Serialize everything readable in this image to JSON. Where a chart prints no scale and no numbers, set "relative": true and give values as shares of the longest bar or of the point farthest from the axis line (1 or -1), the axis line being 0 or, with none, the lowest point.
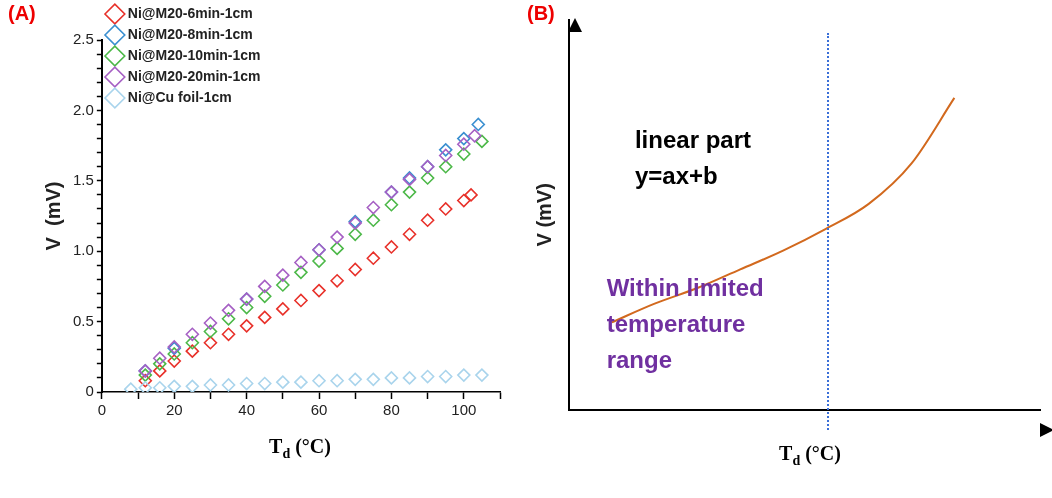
{
  "chart_data": [
    {
      "type": "scatter",
      "title": "(A)",
      "xlabel": "T$_{d}$ (°C)",
      "ylabel": "V  (mV)",
      "marker": "diamond",
      "legend": "top left",
      "grid": false,
      "xlim": [
        0,
        110
      ],
      "xticks": [
        0,
        {
          "value": 10,
          "label": null
        },
        20,
        {
          "value": 30,
          "label": null
        },
        40,
        {
          "value": 50,
          "label": null
        },
        60,
        {
          "value": 70,
          "label": null
        },
        80,
        {
          "value": 90,
          "label": null
        },
        100,
        {
          "value": 110,
          "label": null
        }
      ],
      "ylim": [
        0,
        2.5
      ],
      "yticks": [
        0,
        {
          "value": 0.1,
          "label": null
        },
        {
          "value": 0.2,
          "label": null
        },
        {
          "value": 0.3,
          "label": null
        },
        {
          "value": 0.4,
          "label": null
        },
        0.5,
        {
          "value": 0.6,
          "label": null
        },
        {
          "value": 0.7,
          "label": null
        },
        {
          "value": 0.8,
          "label": null
        },
        {
          "value": 0.9,
          "label": null
        },
        {
          "value": 1,
          "label": "1.0"
        },
        {
          "value": 1.1,
          "label": null
        },
        {
          "value": 1.2,
          "label": null
        },
        {
          "value": 1.3,
          "label": null
        },
        {
          "value": 1.4,
          "label": null
        },
        1.5,
        {
          "value": 1.6,
          "label": null
        },
        {
          "value": 1.7,
          "label": null
        },
        {
          "value": 1.8,
          "label": null
        },
        {
          "value": 1.9,
          "label": null
        },
        {
          "value": 2,
          "label": "2.0"
        },
        {
          "value": 2.1,
          "label": null
        },
        {
          "value": 2.2,
          "label": null
        },
        {
          "value": 2.3,
          "label": null
        },
        {
          "value": 2.4,
          "label": null
        },
        2.5
      ],
      "series": [
        {
          "name": "Ni@M20-6min-1cm",
          "color": "#e8312a",
          "x": [
            12,
            16,
            20,
            25,
            30,
            35,
            40,
            45,
            50,
            55,
            60,
            65,
            70,
            75,
            80,
            85,
            90,
            95,
            100,
            102
          ],
          "values": [
            0.08,
            0.15,
            0.22,
            0.29,
            0.35,
            0.41,
            0.47,
            0.53,
            0.59,
            0.65,
            0.72,
            0.79,
            0.87,
            0.95,
            1.03,
            1.12,
            1.22,
            1.3,
            1.36,
            1.4
          ]
        },
        {
          "name": "Ni@M20-8min-1cm",
          "color": "#3a8fd0",
          "x": [
            12,
            20,
            30,
            40,
            50,
            60,
            70,
            80,
            85,
            90,
            95,
            100,
            104
          ],
          "values": [
            0.15,
            0.31,
            null,
            0.66,
            null,
            1.01,
            1.21,
            1.42,
            1.52,
            1.6,
            1.72,
            1.8,
            1.9
          ]
        },
        {
          "name": "Ni@M20-10min-1cm",
          "color": "#4cb848",
          "x": [
            12,
            16,
            20,
            25,
            30,
            35,
            40,
            45,
            50,
            55,
            60,
            65,
            70,
            75,
            80,
            85,
            90,
            95,
            100,
            105
          ],
          "values": [
            0.12,
            0.2,
            0.27,
            0.35,
            0.43,
            0.52,
            0.6,
            0.68,
            0.76,
            0.85,
            0.93,
            1.02,
            1.12,
            1.22,
            1.33,
            1.42,
            1.52,
            1.6,
            1.69,
            1.78
          ]
        },
        {
          "name": "Ni@M20-20min-1cm",
          "color": "#a660c4",
          "x": [
            12,
            16,
            20,
            25,
            30,
            35,
            40,
            45,
            50,
            55,
            60,
            65,
            70,
            75,
            80,
            85,
            90,
            95,
            100,
            103
          ],
          "values": [
            0.15,
            0.24,
            0.32,
            0.41,
            0.49,
            0.58,
            0.66,
            0.75,
            0.83,
            0.92,
            1.01,
            1.1,
            1.2,
            1.31,
            1.42,
            1.51,
            1.6,
            1.68,
            1.76,
            1.82
          ]
        },
        {
          "name": "Ni@Cu foil-1cm",
          "color": "#a9d4ec",
          "x": [
            8,
            12,
            16,
            20,
            25,
            30,
            35,
            40,
            45,
            50,
            55,
            60,
            65,
            70,
            75,
            80,
            85,
            90,
            95,
            100,
            105
          ],
          "values": [
            0.02,
            0.03,
            0.03,
            0.04,
            0.04,
            0.05,
            0.05,
            0.06,
            0.06,
            0.07,
            0.07,
            0.08,
            0.08,
            0.09,
            0.09,
            0.1,
            0.1,
            0.11,
            0.11,
            0.12,
            0.12
          ]
        }
      ]
    },
    {
      "type": "line",
      "title": "(B)",
      "xlabel": "T$_{d}$ (°C)",
      "ylabel": "V (mV)",
      "relative": true,
      "grid": false,
      "legend": false,
      "marker": "none",
      "categories": [
        null,
        null,
        null,
        null,
        null,
        null,
        null,
        null,
        null,
        null,
        null,
        null
      ],
      "series": [
        {
          "color": "#d2691e",
          "values": [
            null,
            0.28,
            0.34,
            0.39,
            0.45,
            0.51,
            0.58,
            0.66,
            0.79,
            1,
            null,
            null
          ]
        }
      ],
      "annotations": [
        "linear part\ny=ax+b",
        "Within limited\ntemperature\nrange"
      ]
    }
  ]
}
